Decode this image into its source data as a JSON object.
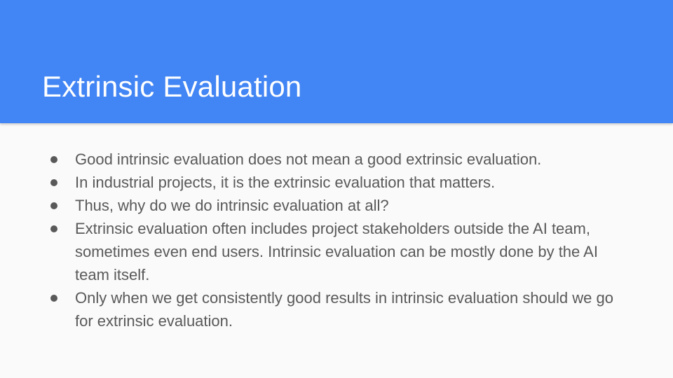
{
  "slide": {
    "title": "Extrinsic Evaluation",
    "colors": {
      "header_background": "#4285f4",
      "title_text": "#ffffff",
      "body_text": "#595959",
      "slide_background": "#fafafa"
    },
    "bullet_icon": "filled-circle",
    "bullets": [
      "Good intrinsic evaluation does not mean a good extrinsic evaluation.",
      "In industrial projects, it is the extrinsic evaluation that matters.",
      "Thus, why do we do intrinsic evaluation at all?",
      "Extrinsic evaluation often includes project stakeholders outside the AI team, sometimes even end users. Intrinsic evaluation can be mostly done by the AI team itself.",
      "Only when we get consistently good results in intrinsic evaluation should we go for extrinsic evaluation."
    ]
  }
}
